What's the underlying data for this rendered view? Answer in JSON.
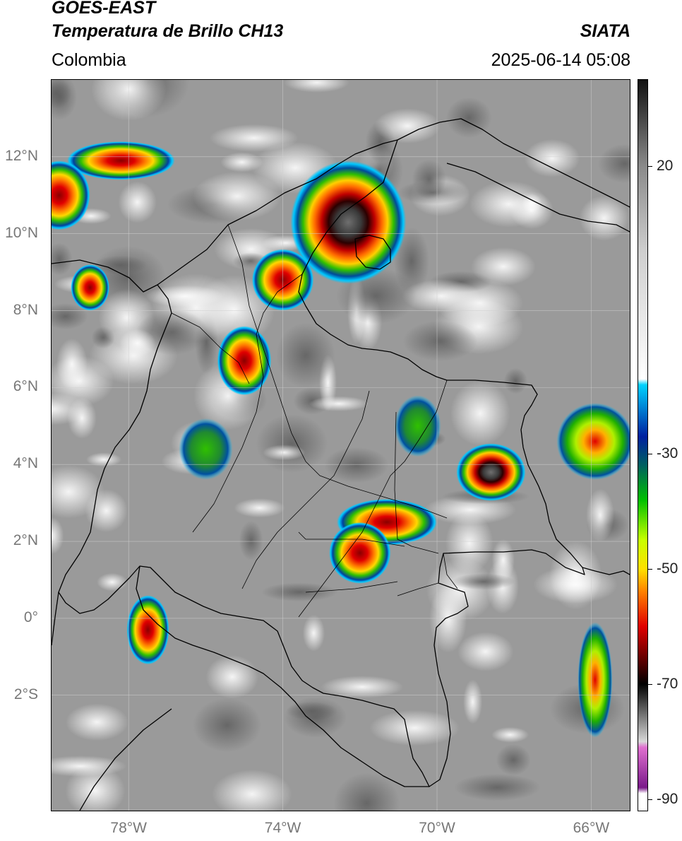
{
  "header": {
    "satellite": "GOES-EAST",
    "product": "Temperatura de Brillo CH13",
    "source": "SIATA",
    "region": "Colombia",
    "timestamp": "2025-06-14 05:08"
  },
  "map": {
    "lon_range": [
      -80,
      -65
    ],
    "lat_range": [
      -5,
      14
    ],
    "lat_ticks": [
      {
        "value": 12,
        "label": "12°N"
      },
      {
        "value": 10,
        "label": "10°N"
      },
      {
        "value": 8,
        "label": "8°N"
      },
      {
        "value": 6,
        "label": "6°N"
      },
      {
        "value": 4,
        "label": "4°N"
      },
      {
        "value": 2,
        "label": "2°N"
      },
      {
        "value": 0,
        "label": "0°"
      },
      {
        "value": -2,
        "label": "2°S"
      }
    ],
    "lon_ticks": [
      {
        "value": -78,
        "label": "78°W"
      },
      {
        "value": -74,
        "label": "74°W"
      },
      {
        "value": -70,
        "label": "70°W"
      },
      {
        "value": -66,
        "label": "66°W"
      }
    ],
    "grid": true,
    "background_color": "#9a9a9a"
  },
  "colorbar": {
    "range": [
      -92,
      35
    ],
    "ticks": [
      {
        "value": 20,
        "label": "20"
      },
      {
        "value": -30,
        "label": "-30"
      },
      {
        "value": -50,
        "label": "-50"
      },
      {
        "value": -70,
        "label": "-70"
      },
      {
        "value": -90,
        "label": "-90"
      }
    ],
    "stops": [
      {
        "value": 35,
        "color": "#111111"
      },
      {
        "value": 20,
        "color": "#8a8a8a"
      },
      {
        "value": 5,
        "color": "#cfcfcf"
      },
      {
        "value": -17,
        "color": "#ffffff"
      },
      {
        "value": -18,
        "color": "#00d2ff"
      },
      {
        "value": -27,
        "color": "#0020a0"
      },
      {
        "value": -32,
        "color": "#006060"
      },
      {
        "value": -38,
        "color": "#00c000"
      },
      {
        "value": -45,
        "color": "#c8ff00"
      },
      {
        "value": -50,
        "color": "#ffe000"
      },
      {
        "value": -54,
        "color": "#ff8000"
      },
      {
        "value": -60,
        "color": "#e00000"
      },
      {
        "value": -65,
        "color": "#700000"
      },
      {
        "value": -70,
        "color": "#000000"
      },
      {
        "value": -80,
        "color": "#d8d8d8"
      },
      {
        "value": -81,
        "color": "#e070d0"
      },
      {
        "value": -88,
        "color": "#7a1a8a"
      },
      {
        "value": -89,
        "color": "#ffffff"
      },
      {
        "value": -92,
        "color": "#ffffff"
      }
    ]
  },
  "clouds": [
    {
      "lon": -72.3,
      "lat": 10.3,
      "rx": 1.5,
      "ry": 1.6,
      "core": "intense"
    },
    {
      "lon": -68.6,
      "lat": 3.8,
      "rx": 0.9,
      "ry": 0.75,
      "core": "intense"
    },
    {
      "lon": -71.3,
      "lat": 2.5,
      "rx": 1.3,
      "ry": 0.6,
      "core": "strong"
    },
    {
      "lon": -72.0,
      "lat": 1.7,
      "rx": 0.8,
      "ry": 0.8,
      "core": "strong"
    },
    {
      "lon": -77.5,
      "lat": -0.3,
      "rx": 0.55,
      "ry": 0.9,
      "core": "strong"
    },
    {
      "lon": -65.9,
      "lat": -1.6,
      "rx": 0.45,
      "ry": 1.5,
      "core": "moderate"
    },
    {
      "lon": -75.0,
      "lat": 6.7,
      "rx": 0.7,
      "ry": 0.9,
      "core": "strong"
    },
    {
      "lon": -79.0,
      "lat": 8.6,
      "rx": 0.5,
      "ry": 0.6,
      "core": "strong"
    },
    {
      "lon": -78.2,
      "lat": 11.9,
      "rx": 1.4,
      "ry": 0.5,
      "core": "strong"
    },
    {
      "lon": -79.8,
      "lat": 11.0,
      "rx": 0.8,
      "ry": 0.9,
      "core": "strong"
    },
    {
      "lon": -65.9,
      "lat": 4.6,
      "rx": 1.0,
      "ry": 1.0,
      "core": "moderate"
    },
    {
      "lon": -74.0,
      "lat": 8.8,
      "rx": 0.8,
      "ry": 0.8,
      "core": "strong"
    },
    {
      "lon": -76.0,
      "lat": 4.4,
      "rx": 0.7,
      "ry": 0.8,
      "core": "weak"
    },
    {
      "lon": -70.5,
      "lat": 5.0,
      "rx": 0.6,
      "ry": 0.8,
      "core": "weak"
    }
  ]
}
